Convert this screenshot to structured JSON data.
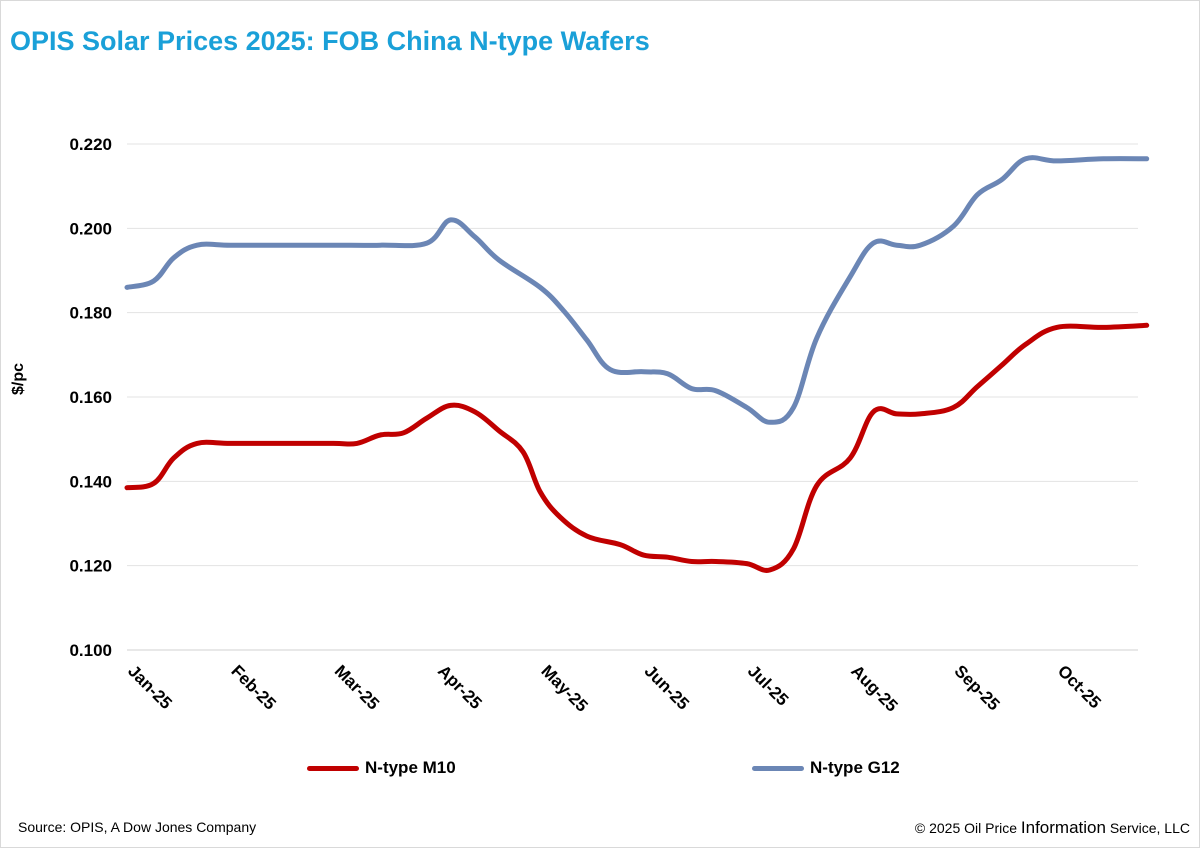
{
  "title": "OPIS Solar Prices 2025: FOB China N-type Wafers",
  "footer": {
    "source": "Source: OPIS, A Dow Jones Company",
    "copyright_pre": "© 2025 Oil Price ",
    "copyright_mid": "Information",
    "copyright_post": " Service, LLC"
  },
  "colors": {
    "title": "#1aa0d8",
    "m10": "#c00000",
    "g12": "#6b86b5"
  },
  "chart_data": {
    "type": "line",
    "title": "OPIS Solar Prices 2025: FOB China N-type Wafers",
    "xlabel": "",
    "ylabel": "$/pc",
    "ylim": [
      0.1,
      0.22
    ],
    "yticks": [
      "0.220",
      "0.200",
      "0.180",
      "0.160",
      "0.140",
      "0.120",
      "0.100"
    ],
    "ytick_values": [
      0.22,
      0.2,
      0.18,
      0.16,
      0.14,
      0.12,
      0.1
    ],
    "xticks": [
      "Jan-25",
      "Feb-25",
      "Mar-25",
      "Apr-25",
      "May-25",
      "Jun-25",
      "Jul-25",
      "Aug-25",
      "Sep-25",
      "Oct-25"
    ],
    "grid": true,
    "legend_position": "bottom",
    "series": [
      {
        "name": "N-type M10",
        "color": "#c00000",
        "x": [
          "2025-01-01",
          "2025-01-09",
          "2025-01-15",
          "2025-01-22",
          "2025-02-01",
          "2025-02-15",
          "2025-03-01",
          "2025-03-08",
          "2025-03-15",
          "2025-03-22",
          "2025-03-29",
          "2025-04-05",
          "2025-04-12",
          "2025-04-19",
          "2025-04-26",
          "2025-05-01",
          "2025-05-07",
          "2025-05-15",
          "2025-05-25",
          "2025-06-01",
          "2025-06-08",
          "2025-06-15",
          "2025-06-22",
          "2025-07-01",
          "2025-07-08",
          "2025-07-15",
          "2025-07-22",
          "2025-08-01",
          "2025-08-08",
          "2025-08-15",
          "2025-08-22",
          "2025-09-01",
          "2025-09-08",
          "2025-09-15",
          "2025-09-22",
          "2025-10-01",
          "2025-10-15",
          "2025-10-28"
        ],
        "values": [
          0.1385,
          0.1395,
          0.1455,
          0.149,
          0.149,
          0.149,
          0.149,
          0.149,
          0.151,
          0.1515,
          0.155,
          0.158,
          0.1565,
          0.152,
          0.147,
          0.1375,
          0.1315,
          0.127,
          0.125,
          0.1225,
          0.122,
          0.121,
          0.121,
          0.1205,
          0.119,
          0.124,
          0.139,
          0.1455,
          0.1565,
          0.156,
          0.156,
          0.1575,
          0.1625,
          0.1675,
          0.1725,
          0.1765,
          0.1765,
          0.177
        ]
      },
      {
        "name": "N-type G12",
        "color": "#6b86b5",
        "x": [
          "2025-01-01",
          "2025-01-09",
          "2025-01-15",
          "2025-01-22",
          "2025-02-01",
          "2025-02-15",
          "2025-03-01",
          "2025-03-15",
          "2025-03-29",
          "2025-04-05",
          "2025-04-12",
          "2025-04-19",
          "2025-05-01",
          "2025-05-08",
          "2025-05-15",
          "2025-05-22",
          "2025-06-01",
          "2025-06-08",
          "2025-06-15",
          "2025-06-22",
          "2025-07-01",
          "2025-07-08",
          "2025-07-15",
          "2025-07-22",
          "2025-08-01",
          "2025-08-08",
          "2025-08-15",
          "2025-08-22",
          "2025-09-01",
          "2025-09-08",
          "2025-09-15",
          "2025-09-22",
          "2025-10-01",
          "2025-10-15",
          "2025-10-28"
        ],
        "values": [
          0.186,
          0.1875,
          0.193,
          0.196,
          0.196,
          0.196,
          0.196,
          0.196,
          0.1965,
          0.202,
          0.198,
          0.1925,
          0.186,
          0.1805,
          0.1735,
          0.1665,
          0.166,
          0.1655,
          0.162,
          0.1615,
          0.1575,
          0.154,
          0.1575,
          0.174,
          0.1885,
          0.1965,
          0.196,
          0.196,
          0.2005,
          0.208,
          0.2115,
          0.2165,
          0.216,
          0.2165,
          0.2165
        ]
      }
    ]
  }
}
